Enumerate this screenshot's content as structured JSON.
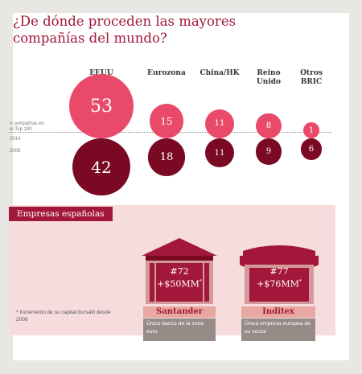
{
  "title": "¿De dónde proceden las mayores compañías del mundo?",
  "row_labels": {
    "metric": "# compañías en el Top 100",
    "year_a": "2014",
    "year_b": "2009"
  },
  "regions": [
    {
      "label": "EEUU",
      "v2014": 53,
      "v2009": 42
    },
    {
      "label": "Eurozona",
      "v2014": 15,
      "v2009": 18
    },
    {
      "label": "China/HK",
      "v2014": 11,
      "v2009": 11
    },
    {
      "label": "Reino Unido",
      "v2014": 8,
      "v2009": 9
    },
    {
      "label": "Otros BRIC",
      "v2014": 1,
      "v2009": 6
    }
  ],
  "colors": {
    "accent": "#a3183a",
    "bubble_2014": "#e94a6a",
    "bubble_2009": "#7a0a24",
    "panel_bg": "#f6dcdc",
    "building_light": "#d4999a",
    "building_dark": "#a3183a"
  },
  "spanish": {
    "title": "Empresas españolas",
    "footnote": "* Incremento de su capital bursátil desde 2009",
    "companies": [
      {
        "rank": "#72",
        "value": "+$50MM",
        "star": "*",
        "name": "Santander",
        "note": "Único banco de la zona euro",
        "icon": "bank-building-icon"
      },
      {
        "rank": "#77",
        "value": "+$76MM",
        "star": "*",
        "name": "Inditex",
        "note": "Única empresa europea de su sector",
        "icon": "storefront-icon"
      }
    ]
  }
}
